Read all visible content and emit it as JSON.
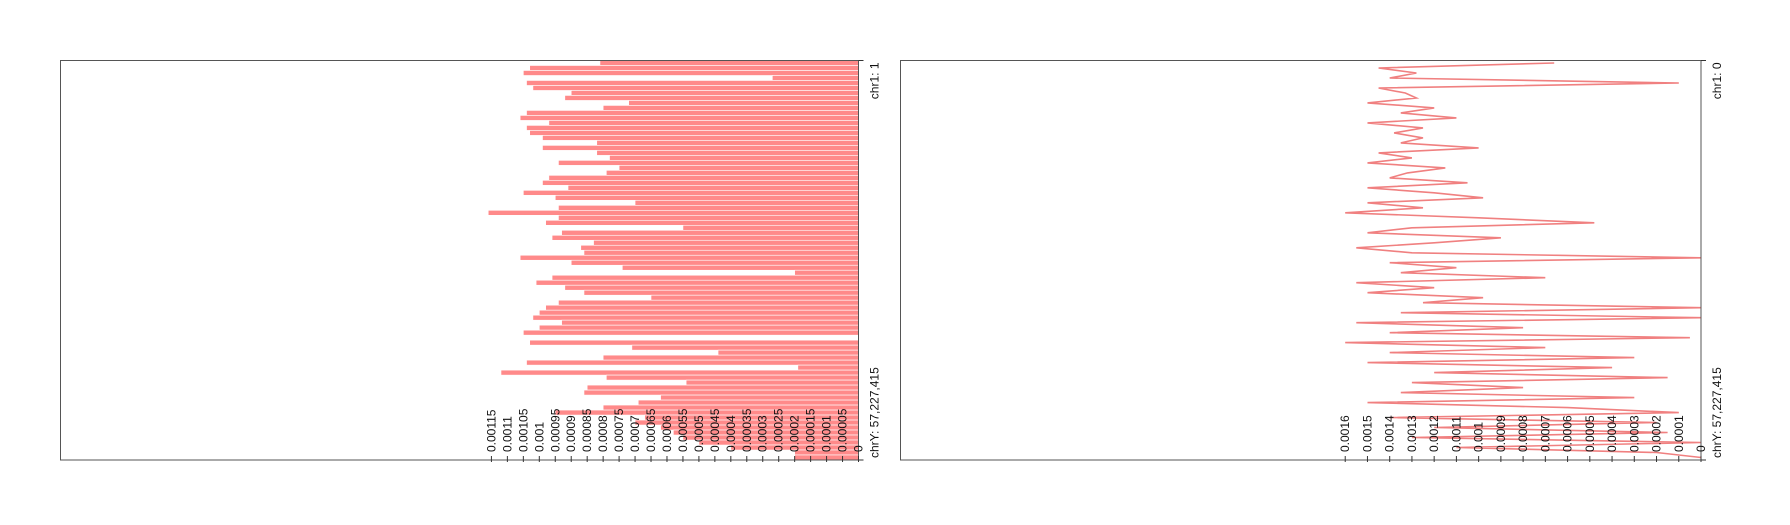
{
  "chart_data": [
    {
      "type": "bar",
      "color": "#ff8a8a",
      "categories": [
        "chr1: 1",
        null,
        null,
        null,
        null,
        null,
        null,
        null,
        null,
        null,
        null,
        null,
        null,
        null,
        null,
        null,
        null,
        null,
        null,
        null,
        null,
        null,
        null,
        null,
        null,
        null,
        null,
        null,
        null,
        null,
        null,
        null,
        null,
        null,
        null,
        null,
        null,
        null,
        null,
        null,
        null,
        null,
        null,
        null,
        null,
        null,
        null,
        null,
        null,
        null,
        null,
        null,
        null,
        null,
        null,
        null,
        null,
        null,
        null,
        null,
        null,
        null,
        null,
        null,
        null,
        null,
        null,
        null,
        null,
        null,
        null,
        null,
        null,
        null,
        null,
        null,
        null,
        null,
        null,
        "chrY: 57,227,415"
      ],
      "values": [
        0.00081,
        0.00103,
        0.00105,
        0.00027,
        0.00104,
        0.00102,
        0.0009,
        0.00092,
        0.00072,
        0.0008,
        0.00104,
        0.00106,
        0.00097,
        0.00104,
        0.00103,
        0.00099,
        0.00082,
        0.00099,
        0.00082,
        0.00078,
        0.00094,
        0.00075,
        0.00079,
        0.00097,
        0.00099,
        0.00091,
        0.00105,
        0.00095,
        0.0007,
        0.00094,
        0.00116,
        0.00094,
        0.00098,
        0.00055,
        0.00093,
        0.00096,
        0.00083,
        0.00087,
        0.00086,
        0.00106,
        0.0009,
        0.00074,
        0.0002,
        0.00096,
        0.00101,
        0.00092,
        0.00086,
        0.00065,
        0.00094,
        0.00098,
        0.001,
        0.00102,
        0.00093,
        0.001,
        0.00105,
        0,
        0.00103,
        0.00071,
        0.00044,
        0.0008,
        0.00104,
        0.00019,
        0.00112,
        0.00079,
        0.00054,
        0.00085,
        0.00086,
        0.00062,
        0.00069,
        0.0008,
        0.00095,
        0.00067,
        0.0007,
        0.00062,
        0.00058,
        0.00055,
        0.0005,
        0.0004,
        0.0002,
        0.0002
      ],
      "xlim": [
        0.0025,
        0
      ],
      "xticks": [
        0,
        5e-05,
        0.0001,
        0.00015,
        0.0002,
        0.00025,
        0.0003,
        0.00035,
        0.0004,
        0.00045,
        0.0005,
        0.00055,
        0.0006,
        0.00065,
        0.0007,
        0.00075,
        0.0008,
        0.00085,
        0.0009,
        0.00095,
        0.001,
        0.00105,
        0.0011,
        0.00115
      ]
    },
    {
      "type": "line",
      "color": "#f08080",
      "categories": [
        "chr1: 0",
        null,
        null,
        null,
        null,
        null,
        null,
        null,
        null,
        null,
        null,
        null,
        null,
        null,
        null,
        null,
        null,
        null,
        null,
        null,
        null,
        null,
        null,
        null,
        null,
        null,
        null,
        null,
        null,
        null,
        null,
        null,
        null,
        null,
        null,
        null,
        null,
        null,
        null,
        null,
        null,
        null,
        null,
        null,
        null,
        null,
        null,
        null,
        null,
        null,
        null,
        null,
        null,
        null,
        null,
        null,
        null,
        null,
        null,
        null,
        null,
        null,
        null,
        null,
        null,
        null,
        null,
        null,
        null,
        null,
        null,
        null,
        null,
        null,
        null,
        null,
        null,
        null,
        null,
        "chrY: 57,227,415"
      ],
      "values": [
        0.00066,
        0.00145,
        0.00128,
        0.0014,
        0.0001,
        0.00145,
        0.00133,
        0.00128,
        0.0015,
        0.0012,
        0.00135,
        0.0011,
        0.0015,
        0.00125,
        0.00138,
        0.00125,
        0.00135,
        0.001,
        0.00145,
        0.0013,
        0.0015,
        0.00115,
        0.00132,
        0.0014,
        0.00105,
        0.0015,
        0.0012,
        0.00098,
        0.0015,
        0.00125,
        0.0016,
        0.001,
        0.00048,
        0.0013,
        0.0015,
        0.0009,
        0.0012,
        0.00155,
        0.0013,
        0,
        0.0014,
        0.0011,
        0.00135,
        0.0007,
        0.00155,
        0.0012,
        0.0015,
        0.00098,
        0.00125,
        0,
        0.00135,
        0,
        0.00155,
        0.0008,
        0.0014,
        5e-05,
        0.0016,
        0.0007,
        0.0014,
        0.0003,
        0.0015,
        0.0004,
        0.0012,
        0.00015,
        0.0013,
        0.0008,
        0.00135,
        0.0003,
        0.0015,
        0.0006,
        0.0001,
        0.0014,
        0.0002,
        0.0012,
        0.00015,
        0.0013,
        0,
        0.0011,
        0.0002,
        0
      ],
      "xlim": [
        0.0036,
        0
      ],
      "xticks": [
        0,
        0.0001,
        0.0002,
        0.0003,
        0.0004,
        0.0005,
        0.0006,
        0.0007,
        0.0008,
        0.0009,
        0.001,
        0.0011,
        0.0012,
        0.0013,
        0.0014,
        0.0015,
        0.0016
      ]
    }
  ]
}
